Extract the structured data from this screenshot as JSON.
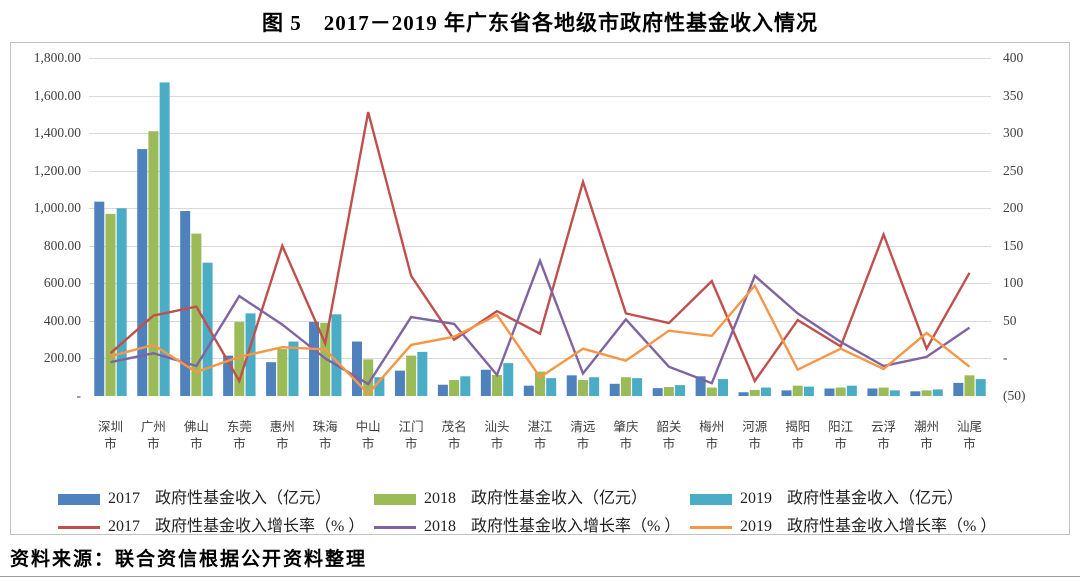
{
  "page": {
    "title": "图 5　2017－2019 年广东省各地级市政府性基金收入情况",
    "source_note": "资料来源：联合资信根据公开资料整理"
  },
  "chart_data": {
    "type": "bar+line",
    "title": "图 5　2017－2019 年广东省各地级市政府性基金收入情况",
    "grid": "horizontal",
    "legend_position": "bottom",
    "categories": [
      "深圳市",
      "广州市",
      "佛山市",
      "东莞市",
      "惠州市",
      "珠海市",
      "中山市",
      "江门市",
      "茂名市",
      "汕头市",
      "湛江市",
      "清远市",
      "肇庆市",
      "韶关市",
      "梅州市",
      "河源市",
      "揭阳市",
      "阳江市",
      "云浮市",
      "潮州市",
      "汕尾市"
    ],
    "left_axis": {
      "min": 0,
      "max": 1800,
      "step": 200,
      "tick_labels_top_to_bottom": [
        "1,800.00",
        "1,600.00",
        "1,400.00",
        "1,200.00",
        "1,000.00",
        "800.00",
        "600.00",
        "400.00",
        "200.00",
        "-"
      ]
    },
    "right_axis": {
      "min": -50,
      "max": 400,
      "step": 50,
      "tick_labels_top_to_bottom": [
        "400",
        "350",
        "300",
        "250",
        "200",
        "150",
        "100",
        "50",
        "-",
        "(50)"
      ]
    },
    "bar_series": [
      {
        "year": "2017",
        "label": "政府性基金收入（亿元）",
        "color": "#4F81BD",
        "values": [
          1035,
          1315,
          985,
          215,
          180,
          395,
          290,
          135,
          60,
          140,
          55,
          110,
          65,
          42,
          105,
          20,
          30,
          40,
          40,
          25,
          70
        ]
      },
      {
        "year": "2018",
        "label": "政府性基金收入（亿元）",
        "color": "#9BBB59",
        "values": [
          970,
          1410,
          865,
          395,
          250,
          390,
          195,
          215,
          85,
          112,
          130,
          85,
          100,
          48,
          45,
          32,
          55,
          45,
          45,
          30,
          110
        ]
      },
      {
        "year": "2019",
        "label": "政府性基金收入（亿元）",
        "color": "#4BACC6",
        "values": [
          1000,
          1670,
          710,
          440,
          290,
          435,
          100,
          235,
          105,
          175,
          95,
          100,
          95,
          58,
          90,
          45,
          50,
          55,
          30,
          35,
          90
        ]
      }
    ],
    "line_series": [
      {
        "year": "2017",
        "label": "政府性基金收入增长率（% ）",
        "color": "#C0504D",
        "values": [
          7,
          57,
          69,
          -30,
          150,
          20,
          328,
          110,
          25,
          63,
          33,
          235,
          60,
          47,
          103,
          -30,
          51,
          16,
          165,
          13,
          114
        ]
      },
      {
        "year": "2018",
        "label": "政府性基金收入增长率（% ）",
        "color": "#8064A2",
        "values": [
          -5,
          7,
          -10,
          83,
          45,
          0,
          -34,
          55,
          46,
          -22,
          130,
          -20,
          52,
          -11,
          -33,
          110,
          60,
          22,
          -10,
          2,
          41
        ]
      },
      {
        "year": "2019",
        "label": "政府性基金收入增长率（% ）",
        "color": "#F79646",
        "values": [
          3,
          18,
          -18,
          2,
          15,
          12,
          -47,
          18,
          29,
          58,
          -25,
          13,
          -3,
          37,
          30,
          97,
          -15,
          13,
          -14,
          34,
          -11
        ]
      }
    ],
    "colors": {
      "grid": "#D9D9D9",
      "axis_line": "#9E9E9E"
    }
  }
}
